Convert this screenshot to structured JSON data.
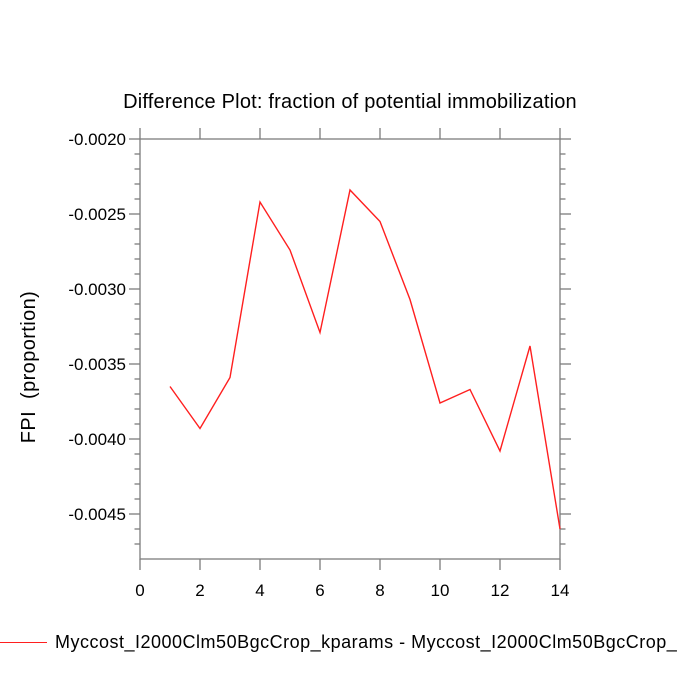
{
  "title": "Difference Plot: fraction of potential immobilization",
  "y_axis_title": "FPI  (proportion)",
  "legend": {
    "label": "Myccost_I2000Clm50BgcCrop_kparams - Myccost_I2000Clm50BgcCrop_",
    "line_color": "#ff1f1f"
  },
  "colors": {
    "series_line": "#ff1f1f",
    "axis": "#7d7d7d",
    "text": "#000000",
    "background": "#ffffff"
  },
  "chart_data": {
    "type": "line",
    "title": "Difference Plot: fraction of potential immobilization",
    "xlabel": "",
    "ylabel": "FPI  (proportion)",
    "series": [
      {
        "name": "Myccost_I2000Clm50BgcCrop_kparams - Myccost_I2000Clm50BgcCrop_",
        "color": "#ff1f1f",
        "x": [
          1,
          2,
          3,
          4,
          5,
          6,
          7,
          8,
          9,
          10,
          11,
          12,
          13,
          14
        ],
        "values": [
          -0.00365,
          -0.00393,
          -0.00359,
          -0.00242,
          -0.00274,
          -0.00329,
          -0.00234,
          -0.00255,
          -0.00307,
          -0.00376,
          -0.00367,
          -0.00408,
          -0.00338,
          -0.0046
        ]
      }
    ],
    "xlim": [
      0,
      14
    ],
    "ylim": [
      -0.0048,
      -0.002
    ],
    "x_major_ticks": [
      0,
      2,
      4,
      6,
      8,
      10,
      12,
      14
    ],
    "x_tick_labels": [
      "0",
      "2",
      "4",
      "6",
      "8",
      "10",
      "12",
      "14"
    ],
    "y_major_ticks": [
      -0.002,
      -0.0025,
      -0.003,
      -0.0035,
      -0.004,
      -0.0045
    ],
    "y_tick_labels": [
      "-0.0020",
      "-0.0025",
      "-0.0030",
      "-0.0035",
      "-0.0040",
      "-0.0045"
    ],
    "y_minor_tick_step": 0.0001,
    "grid": false,
    "frame": "box-with-outward-ticks",
    "legend_position": "bottom-left"
  }
}
